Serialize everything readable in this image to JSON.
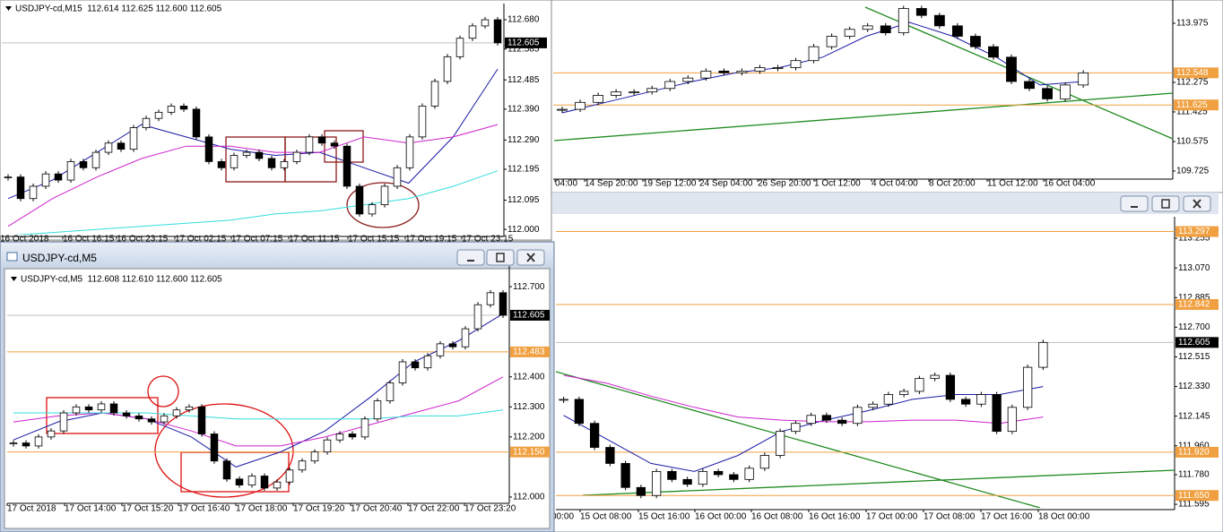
{
  "panes": [
    {
      "header": "USDJPY-cd,M15  112.614 112.625 112.600 112.605",
      "ylim": [
        111.983,
        112.715
      ],
      "yticks": [
        {
          "value": 112.68,
          "label": "112.680"
        },
        {
          "value": 112.585,
          "label": "112.585"
        },
        {
          "value": 112.485,
          "label": "112.485"
        },
        {
          "value": 112.39,
          "label": "112.390"
        },
        {
          "value": 112.29,
          "label": "112.290"
        },
        {
          "value": 112.195,
          "label": "112.195"
        },
        {
          "value": 112.095,
          "label": "112.095"
        },
        {
          "value": 112.0,
          "label": "112.000"
        }
      ],
      "levels": [],
      "current": {
        "value": 112.605,
        "label": "112.605"
      },
      "times": [
        "16 Oct 2018",
        "16 Oct 16:15",
        "16 Oct 23:15",
        "17 Oct 02:15",
        "17 Oct 07:15",
        "17 Oct 11:15",
        "17 Oct 15:15",
        "17 Oct 19:15",
        "17 Oct 23:15"
      ],
      "closes": [
        112.17,
        112.1,
        112.14,
        112.18,
        112.16,
        112.22,
        112.2,
        112.25,
        112.28,
        112.26,
        112.33,
        112.36,
        112.38,
        112.4,
        112.39,
        112.3,
        112.22,
        112.2,
        112.24,
        112.25,
        112.23,
        112.2,
        112.22,
        112.25,
        112.3,
        112.28,
        112.27,
        112.14,
        112.05,
        112.08,
        112.14,
        112.2,
        112.3,
        112.4,
        112.48,
        112.56,
        112.62,
        112.66,
        112.68,
        112.605
      ],
      "averages": [
        {
          "color": "#1a1aa6",
          "values": [
            112.1,
            112.16,
            112.25,
            112.34,
            112.3,
            112.26,
            112.24,
            112.25,
            112.2,
            112.15,
            112.3,
            112.52
          ]
        },
        {
          "color": "#cc22cc",
          "values": [
            112.01,
            112.1,
            112.17,
            112.23,
            112.27,
            112.27,
            112.25,
            112.25,
            112.3,
            112.28,
            112.3,
            112.34
          ]
        },
        {
          "color": "#33dddd",
          "values": [
            111.98,
            111.99,
            112.0,
            112.01,
            112.02,
            112.03,
            112.05,
            112.06,
            112.08,
            112.1,
            112.14,
            112.19
          ]
        }
      ]
    },
    {
      "ylim": [
        109.545,
        114.54
      ],
      "yticks": [
        {
          "value": 113.975,
          "label": "113.975"
        },
        {
          "value": 112.275,
          "label": "112.275"
        },
        {
          "value": 111.425,
          "label": "111.425"
        },
        {
          "value": 110.575,
          "label": "110.575"
        },
        {
          "value": 109.725,
          "label": "109.725"
        }
      ],
      "levels": [
        {
          "value": 112.548,
          "label": "112.548"
        },
        {
          "value": 111.625,
          "label": "111.625"
        }
      ],
      "times": [
        "04:00",
        "14 Sep 20:00",
        "19 Sep 12:00",
        "24 Sep 04:00",
        "26 Sep 20:00",
        "1 Oct 12:00",
        "4 Oct 04:00",
        "8 Oct 20:00",
        "11 Oct 12:00",
        "16 Oct 04:00"
      ],
      "closes": [
        111.5,
        111.7,
        111.9,
        112.0,
        112.0,
        112.1,
        112.3,
        112.4,
        112.6,
        112.55,
        112.6,
        112.7,
        112.7,
        112.9,
        113.3,
        113.6,
        113.8,
        113.9,
        113.7,
        114.4,
        114.2,
        113.9,
        113.6,
        113.3,
        113.0,
        112.3,
        112.1,
        111.8,
        112.2,
        112.548
      ],
      "averages": [
        {
          "color": "#1a1aa6",
          "values": [
            111.4,
            111.7,
            112.0,
            112.3,
            112.55,
            112.7,
            113.0,
            113.6,
            114.0,
            113.6,
            113.0,
            112.2,
            112.3
          ]
        }
      ]
    },
    {
      "window_title": "USDJPY-cd,M5",
      "header": "USDJPY-cd,M5  112.608 112.610 112.600 112.605",
      "ylim": [
        111.985,
        112.751
      ],
      "yticks": [
        {
          "value": 112.7,
          "label": "112.700"
        },
        {
          "value": 112.4,
          "label": "112.400"
        },
        {
          "value": 112.3,
          "label": "112.300"
        },
        {
          "value": 112.2,
          "label": "112.200"
        },
        {
          "value": 112.0,
          "label": "112.000"
        }
      ],
      "levels": [
        {
          "value": 112.483,
          "label": "112.483"
        },
        {
          "value": 112.15,
          "label": "112.150"
        }
      ],
      "current": {
        "value": 112.605,
        "label": "112.605"
      },
      "times": [
        "17 Oct 2018",
        "17 Oct 14:00",
        "17 Oct 15:20",
        "17 Oct 16:40",
        "17 Oct 18:00",
        "17 Oct 19:20",
        "17 Oct 20:40",
        "17 Oct 22:00",
        "17 Oct 23:20"
      ],
      "closes": [
        112.18,
        112.17,
        112.2,
        112.22,
        112.28,
        112.3,
        112.29,
        112.31,
        112.28,
        112.27,
        112.26,
        112.25,
        112.27,
        112.29,
        112.3,
        112.21,
        112.12,
        112.06,
        112.04,
        112.07,
        112.03,
        112.05,
        112.09,
        112.12,
        112.15,
        112.19,
        112.21,
        112.2,
        112.26,
        112.32,
        112.38,
        112.45,
        112.43,
        112.47,
        112.51,
        112.5,
        112.56,
        112.64,
        112.68,
        112.605
      ],
      "averages": [
        {
          "color": "#1a1aa6",
          "values": [
            112.19,
            112.25,
            112.28,
            112.26,
            112.2,
            112.1,
            112.15,
            112.22,
            112.33,
            112.45,
            112.52,
            112.61
          ]
        },
        {
          "color": "#cc22cc",
          "values": [
            112.25,
            112.27,
            112.28,
            112.26,
            112.22,
            112.17,
            112.17,
            112.2,
            112.24,
            112.28,
            112.32,
            112.4
          ]
        },
        {
          "color": "#33dddd",
          "values": [
            112.28,
            112.28,
            112.28,
            112.28,
            112.27,
            112.26,
            112.26,
            112.26,
            112.26,
            112.27,
            112.27,
            112.29
          ]
        }
      ]
    },
    {
      "ylim": [
        111.573,
        113.356
      ],
      "yticks": [
        {
          "value": 113.255,
          "label": "113.255"
        },
        {
          "value": 113.07,
          "label": "113.070"
        },
        {
          "value": 112.885,
          "label": "112.885"
        },
        {
          "value": 112.7,
          "label": "112.700"
        },
        {
          "value": 112.515,
          "label": "112.515"
        },
        {
          "value": 112.33,
          "label": "112.330"
        },
        {
          "value": 112.145,
          "label": "112.145"
        },
        {
          "value": 111.96,
          "label": "111.960"
        },
        {
          "value": 111.78,
          "label": "111.780"
        },
        {
          "value": 111.595,
          "label": "111.595"
        }
      ],
      "levels": [
        {
          "value": 113.297,
          "label": "113.297"
        },
        {
          "value": 112.842,
          "label": "112.842"
        },
        {
          "value": 111.92,
          "label": "111.920"
        },
        {
          "value": 111.65,
          "label": "111.650"
        }
      ],
      "current": {
        "value": 112.605,
        "label": "112.605"
      },
      "times": [
        "00:00",
        "15 Oct 08:00",
        "15 Oct 16:00",
        "16 Oct 00:00",
        "16 Oct 08:00",
        "16 Oct 16:00",
        "17 Oct 00:00",
        "17 Oct 08:00",
        "17 Oct 16:00",
        "18 Oct 00:00"
      ],
      "closes": [
        112.25,
        112.1,
        111.95,
        111.85,
        111.7,
        111.65,
        111.8,
        111.75,
        111.72,
        111.8,
        111.78,
        111.75,
        111.82,
        111.9,
        112.05,
        112.1,
        112.15,
        112.12,
        112.1,
        112.2,
        112.22,
        112.28,
        112.3,
        112.38,
        112.4,
        112.25,
        112.22,
        112.28,
        112.05,
        112.2,
        112.45,
        112.605
      ],
      "averages": [
        {
          "color": "#1a1aa6",
          "values": [
            112.15,
            112.0,
            111.85,
            111.8,
            111.9,
            112.05,
            112.12,
            112.18,
            112.25,
            112.28,
            112.28,
            112.33
          ]
        },
        {
          "color": "#cc22cc",
          "values": [
            112.4,
            112.35,
            112.27,
            112.2,
            112.14,
            112.12,
            112.11,
            112.11,
            112.12,
            112.12,
            112.1,
            112.14
          ]
        }
      ]
    }
  ]
}
